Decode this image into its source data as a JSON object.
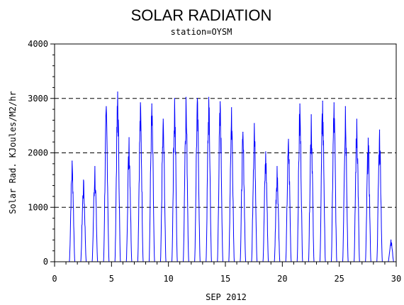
{
  "chart_data": {
    "type": "line",
    "title": "SOLAR RADIATION",
    "subtitle": "station=OYSM",
    "xlabel": "SEP 2012",
    "ylabel": "Solar Rad. KJoules/M2/hr",
    "xlim": [
      0,
      30
    ],
    "ylim": [
      0,
      4000
    ],
    "x_ticks": [
      0,
      5,
      10,
      15,
      20,
      25,
      30
    ],
    "y_ticks": [
      0,
      1000,
      2000,
      3000,
      4000
    ],
    "grid": "horizontal dashed",
    "line_color": "#0000ff",
    "series": [
      {
        "daily_peaks": [
          {
            "day": 1,
            "peak": 1850
          },
          {
            "day": 2,
            "peak": 1500
          },
          {
            "day": 3,
            "peak": 1750
          },
          {
            "day": 4,
            "peak": 2850
          },
          {
            "day": 5,
            "peak": 3120
          },
          {
            "day": 6,
            "peak": 2280
          },
          {
            "day": 7,
            "peak": 2920
          },
          {
            "day": 8,
            "peak": 2900
          },
          {
            "day": 9,
            "peak": 2620
          },
          {
            "day": 10,
            "peak": 3000
          },
          {
            "day": 11,
            "peak": 3020
          },
          {
            "day": 12,
            "peak": 3000
          },
          {
            "day": 13,
            "peak": 3020
          },
          {
            "day": 14,
            "peak": 2940
          },
          {
            "day": 15,
            "peak": 2830
          },
          {
            "day": 16,
            "peak": 2380
          },
          {
            "day": 17,
            "peak": 2540
          },
          {
            "day": 18,
            "peak": 2020
          },
          {
            "day": 19,
            "peak": 1750
          },
          {
            "day": 20,
            "peak": 2250
          },
          {
            "day": 21,
            "peak": 2900
          },
          {
            "day": 22,
            "peak": 2700
          },
          {
            "day": 23,
            "peak": 2950
          },
          {
            "day": 24,
            "peak": 2920
          },
          {
            "day": 25,
            "peak": 2850
          },
          {
            "day": 26,
            "peak": 2620
          },
          {
            "day": 27,
            "peak": 2270
          },
          {
            "day": 28,
            "peak": 2420
          },
          {
            "day": 29,
            "peak": 400
          }
        ]
      }
    ]
  }
}
